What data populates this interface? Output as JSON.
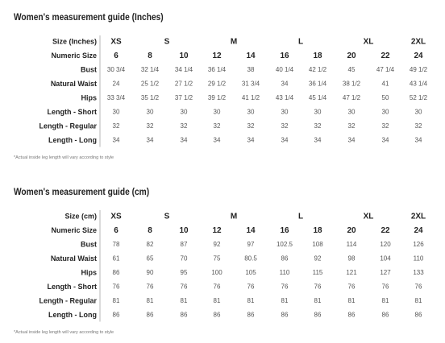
{
  "tables": [
    {
      "title": "Women's measurement guide (Inches)",
      "size_label": "Size (Inches)",
      "sizes": [
        "XS",
        "S",
        "M",
        "L",
        "XL",
        "2XL"
      ],
      "rows": [
        {
          "label": "Numeric Size",
          "values": [
            6,
            8,
            10,
            12,
            14,
            16,
            18,
            20,
            22,
            24
          ]
        },
        {
          "label": "Bust",
          "values": [
            "30 3/4",
            "32 1/4",
            "34 1/4",
            "36 1/4",
            38,
            "40 1/4",
            "42 1/2",
            45,
            "47 1/4",
            "49 1/2"
          ]
        },
        {
          "label": "Natural Waist",
          "values": [
            24,
            "25 1/2",
            "27 1/2",
            "29 1/2",
            "31 3/4",
            34,
            "36 1/4",
            "38 1/2",
            41,
            "43 1/4"
          ]
        },
        {
          "label": "Hips",
          "values": [
            "33 3/4",
            "35 1/2",
            "37 1/2",
            "39 1/2",
            "41 1/2",
            "43 1/4",
            "45 1/4",
            "47 1/2",
            50,
            "52 1/2"
          ]
        },
        {
          "label": "Length - Short",
          "values": [
            30,
            30,
            30,
            30,
            30,
            30,
            30,
            30,
            30,
            30
          ]
        },
        {
          "label": "Length - Regular",
          "values": [
            32,
            32,
            32,
            32,
            32,
            32,
            32,
            32,
            32,
            32
          ]
        },
        {
          "label": "Length - Long",
          "values": [
            34,
            34,
            34,
            34,
            34,
            34,
            34,
            34,
            34,
            34
          ]
        }
      ],
      "footnote": "*Actual inside leg length will vary according to style"
    },
    {
      "title": "Women's measurement guide (cm)",
      "size_label": "Size (cm)",
      "sizes": [
        "XS",
        "S",
        "M",
        "L",
        "XL",
        "2XL"
      ],
      "rows": [
        {
          "label": "Numeric Size",
          "values": [
            6,
            8,
            10,
            12,
            14,
            16,
            18,
            20,
            22,
            24
          ]
        },
        {
          "label": "Bust",
          "values": [
            78,
            82,
            87,
            92,
            97,
            102.5,
            108,
            114,
            120,
            126
          ]
        },
        {
          "label": "Natural Waist",
          "values": [
            61,
            65,
            70,
            75,
            80.5,
            86,
            92,
            98,
            104,
            110
          ]
        },
        {
          "label": "Hips",
          "values": [
            86,
            90,
            95,
            100,
            105,
            110,
            115,
            121,
            127,
            133
          ]
        },
        {
          "label": "Length - Short",
          "values": [
            76,
            76,
            76,
            76,
            76,
            76,
            76,
            76,
            76,
            76
          ]
        },
        {
          "label": "Length - Regular",
          "values": [
            81,
            81,
            81,
            81,
            81,
            81,
            81,
            81,
            81,
            81
          ]
        },
        {
          "label": "Length - Long",
          "values": [
            86,
            86,
            86,
            86,
            86,
            86,
            86,
            86,
            86,
            86
          ]
        }
      ],
      "footnote": "*Actual inside leg length will vary according to style"
    }
  ]
}
